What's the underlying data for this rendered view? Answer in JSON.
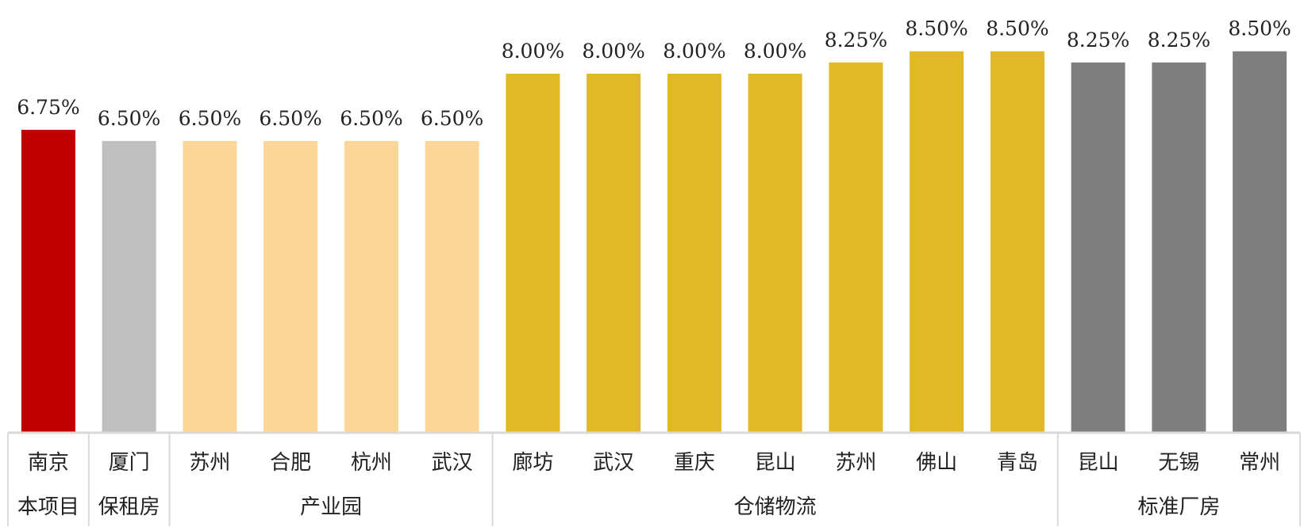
{
  "chart_data": {
    "type": "bar",
    "categories": [
      "南京",
      "厦门",
      "苏州",
      "合肥",
      "杭州",
      "武汉",
      "廊坊",
      "武汉",
      "重庆",
      "昆山",
      "苏州",
      "佛山",
      "青岛",
      "昆山",
      "无锡",
      "常州"
    ],
    "values": [
      6.75,
      6.5,
      6.5,
      6.5,
      6.5,
      6.5,
      8.0,
      8.0,
      8.0,
      8.0,
      8.25,
      8.5,
      8.5,
      8.25,
      8.25,
      8.5
    ],
    "value_labels": [
      "6.75%",
      "6.50%",
      "6.50%",
      "6.50%",
      "6.50%",
      "6.50%",
      "8.00%",
      "8.00%",
      "8.00%",
      "8.00%",
      "8.25%",
      "8.50%",
      "8.50%",
      "8.25%",
      "8.25%",
      "8.50%"
    ],
    "groups": [
      {
        "label": "本项目",
        "count": 1,
        "color": "#C00000"
      },
      {
        "label": "保租房",
        "count": 1,
        "color": "#BFBFBF"
      },
      {
        "label": "产业园",
        "count": 4,
        "color": "#FAD699"
      },
      {
        "label": "仓储物流",
        "count": 7,
        "color": "#E0B828"
      },
      {
        "label": "标准厂房",
        "count": 3,
        "color": "#7F7F7F"
      }
    ],
    "ylim": [
      0,
      8.9
    ],
    "grid": false,
    "legend": "none"
  }
}
